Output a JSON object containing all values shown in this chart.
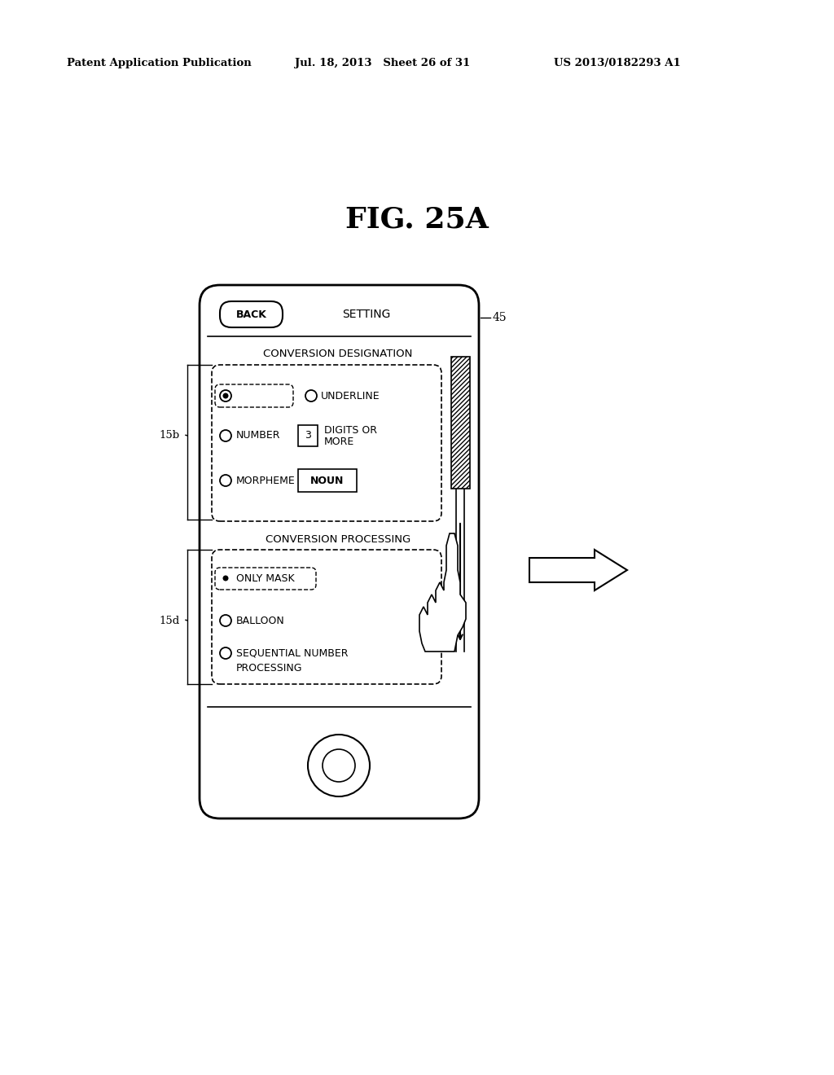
{
  "bg_color": "#ffffff",
  "title": "FIG. 25A",
  "header_left": "Patent Application Publication",
  "header_mid": "Jul. 18, 2013   Sheet 26 of 31",
  "header_right": "US 2013/0182293 A1",
  "label_45": "45",
  "label_15b": "15b",
  "label_15d": "15d"
}
